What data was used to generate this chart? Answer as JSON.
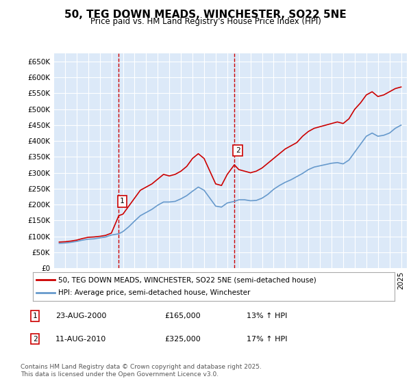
{
  "title": "50, TEG DOWN MEADS, WINCHESTER, SO22 5NE",
  "subtitle": "Price paid vs. HM Land Registry's House Price Index (HPI)",
  "ylabel_ticks": [
    "£0",
    "£50K",
    "£100K",
    "£150K",
    "£200K",
    "£250K",
    "£300K",
    "£350K",
    "£400K",
    "£450K",
    "£500K",
    "£550K",
    "£600K",
    "£650K"
  ],
  "ylim": [
    0,
    675000
  ],
  "xlim_start": 1995.5,
  "xlim_end": 2025.5,
  "bg_color": "#dce9f8",
  "plot_bg": "#dce9f8",
  "grid_color": "#ffffff",
  "line1_color": "#cc0000",
  "line2_color": "#6699cc",
  "marker1_date": 2000.64,
  "marker2_date": 2010.61,
  "marker1_price": 165000,
  "marker2_price": 325000,
  "annotation1": [
    "1",
    "23-AUG-2000",
    "£165,000",
    "13% ↑ HPI"
  ],
  "annotation2": [
    "2",
    "11-AUG-2010",
    "£325,000",
    "17% ↑ HPI"
  ],
  "legend_line1": "50, TEG DOWN MEADS, WINCHESTER, SO22 5NE (semi-detached house)",
  "legend_line2": "HPI: Average price, semi-detached house, Winchester",
  "footer": "Contains HM Land Registry data © Crown copyright and database right 2025.\nThis data is licensed under the Open Government Licence v3.0.",
  "hpi_red_series": {
    "x": [
      1995.5,
      1996.0,
      1996.5,
      1997.0,
      1997.5,
      1998.0,
      1998.5,
      1999.0,
      1999.5,
      2000.0,
      2000.64,
      2001.0,
      2001.5,
      2002.0,
      2002.5,
      2003.0,
      2003.5,
      2004.0,
      2004.5,
      2005.0,
      2005.5,
      2006.0,
      2006.5,
      2007.0,
      2007.5,
      2008.0,
      2008.5,
      2009.0,
      2009.5,
      2010.0,
      2010.61,
      2011.0,
      2011.5,
      2012.0,
      2012.5,
      2013.0,
      2013.5,
      2014.0,
      2014.5,
      2015.0,
      2015.5,
      2016.0,
      2016.5,
      2017.0,
      2017.5,
      2018.0,
      2018.5,
      2019.0,
      2019.5,
      2020.0,
      2020.5,
      2021.0,
      2021.5,
      2022.0,
      2022.5,
      2023.0,
      2023.5,
      2024.0,
      2024.5,
      2025.0
    ],
    "y": [
      82000,
      83000,
      85000,
      88000,
      93000,
      97000,
      98000,
      100000,
      103000,
      110000,
      165000,
      170000,
      195000,
      220000,
      245000,
      255000,
      265000,
      280000,
      295000,
      290000,
      295000,
      305000,
      320000,
      345000,
      360000,
      345000,
      305000,
      265000,
      260000,
      295000,
      325000,
      310000,
      305000,
      300000,
      305000,
      315000,
      330000,
      345000,
      360000,
      375000,
      385000,
      395000,
      415000,
      430000,
      440000,
      445000,
      450000,
      455000,
      460000,
      455000,
      470000,
      500000,
      520000,
      545000,
      555000,
      540000,
      545000,
      555000,
      565000,
      570000
    ]
  },
  "hpi_blue_series": {
    "x": [
      1995.5,
      1996.0,
      1996.5,
      1997.0,
      1997.5,
      1998.0,
      1998.5,
      1999.0,
      1999.5,
      2000.0,
      2000.64,
      2001.0,
      2001.5,
      2002.0,
      2002.5,
      2003.0,
      2003.5,
      2004.0,
      2004.5,
      2005.0,
      2005.5,
      2006.0,
      2006.5,
      2007.0,
      2007.5,
      2008.0,
      2008.5,
      2009.0,
      2009.5,
      2010.0,
      2010.61,
      2011.0,
      2011.5,
      2012.0,
      2012.5,
      2013.0,
      2013.5,
      2014.0,
      2014.5,
      2015.0,
      2015.5,
      2016.0,
      2016.5,
      2017.0,
      2017.5,
      2018.0,
      2018.5,
      2019.0,
      2019.5,
      2020.0,
      2020.5,
      2021.0,
      2021.5,
      2022.0,
      2022.5,
      2023.0,
      2023.5,
      2024.0,
      2024.5,
      2025.0
    ],
    "y": [
      78000,
      79000,
      81000,
      84000,
      88000,
      91000,
      92000,
      95000,
      98000,
      104000,
      108000,
      115000,
      130000,
      148000,
      165000,
      175000,
      185000,
      198000,
      208000,
      208000,
      210000,
      218000,
      228000,
      242000,
      255000,
      245000,
      220000,
      195000,
      192000,
      205000,
      210000,
      215000,
      215000,
      212000,
      213000,
      220000,
      232000,
      248000,
      260000,
      270000,
      278000,
      288000,
      298000,
      310000,
      318000,
      322000,
      326000,
      330000,
      332000,
      328000,
      340000,
      365000,
      390000,
      415000,
      425000,
      415000,
      418000,
      425000,
      440000,
      450000
    ]
  }
}
